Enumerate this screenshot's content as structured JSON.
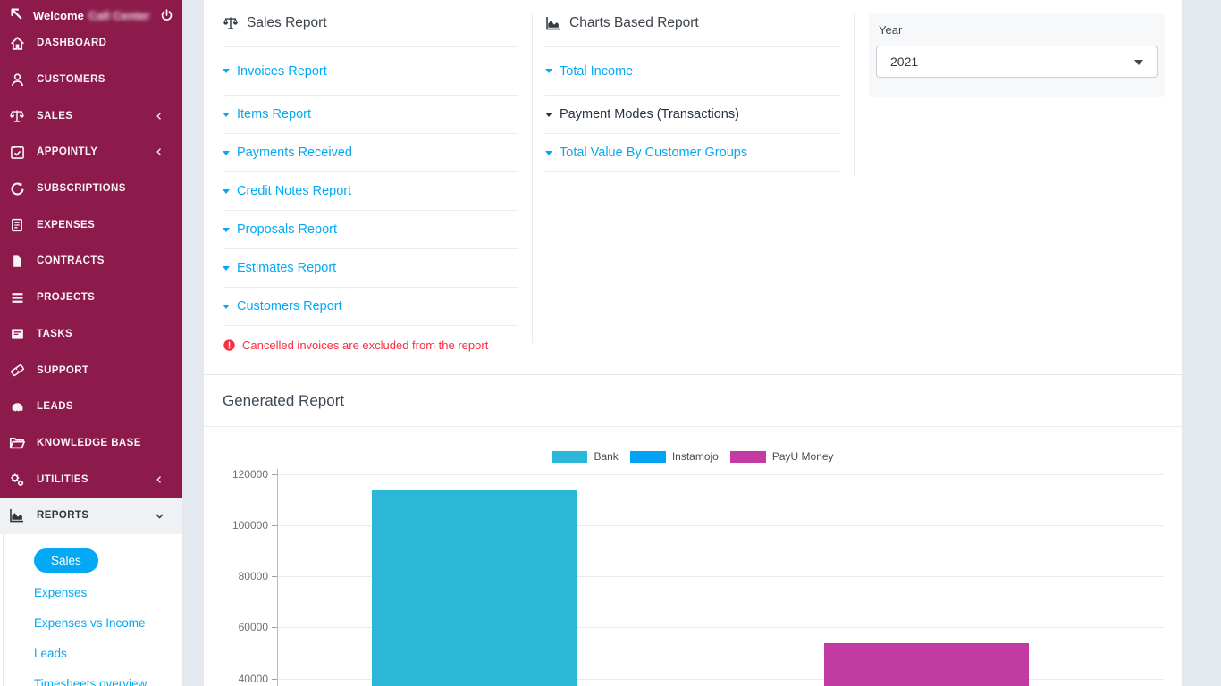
{
  "colors": {
    "sidebar_bg": "#8c1b4b",
    "accent_blue": "#03a9f4",
    "danger_red": "#fc2d42",
    "active_row_bg": "#eef2f5"
  },
  "sidebar": {
    "toggle_icon": "back-arrow-icon",
    "power_icon": "power-icon",
    "welcome_label": "Welcome",
    "welcome_user": "Call Center",
    "items": [
      {
        "label": "DASHBOARD",
        "icon": "home-icon"
      },
      {
        "label": "CUSTOMERS",
        "icon": "customers-icon"
      },
      {
        "label": "SALES",
        "icon": "sales-icon",
        "chevron": "left"
      },
      {
        "label": "APPOINTLY",
        "icon": "calendar-icon",
        "chevron": "left"
      },
      {
        "label": "SUBSCRIPTIONS",
        "icon": "subscriptions-icon"
      },
      {
        "label": "EXPENSES",
        "icon": "expenses-icon"
      },
      {
        "label": "CONTRACTS",
        "icon": "contracts-icon"
      },
      {
        "label": "PROJECTS",
        "icon": "projects-icon"
      },
      {
        "label": "TASKS",
        "icon": "tasks-icon"
      },
      {
        "label": "SUPPORT",
        "icon": "support-icon"
      },
      {
        "label": "LEADS",
        "icon": "leads-icon"
      },
      {
        "label": "KNOWLEDGE BASE",
        "icon": "knowledge-base-icon"
      },
      {
        "label": "UTILITIES",
        "icon": "utilities-icon",
        "chevron": "left"
      },
      {
        "label": "REPORTS",
        "icon": "reports-icon",
        "chevron": "down",
        "active": true
      }
    ],
    "submenu": [
      {
        "label": "Sales",
        "active": true
      },
      {
        "label": "Expenses"
      },
      {
        "label": "Expenses vs Income"
      },
      {
        "label": "Leads"
      },
      {
        "label": "Timesheets overview"
      }
    ]
  },
  "sales_report": {
    "title": "Sales Report",
    "icon": "scales-icon",
    "links": [
      "Invoices Report",
      "Items Report",
      "Payments Received",
      "Credit Notes Report",
      "Proposals Report",
      "Estimates Report",
      "Customers Report"
    ],
    "note": "Cancelled invoices are excluded from the report",
    "note_icon": "alert-icon"
  },
  "charts_report": {
    "title": "Charts Based Report",
    "icon": "area-chart-icon",
    "links": [
      {
        "label": "Total Income",
        "active": false
      },
      {
        "label": "Payment Modes (Transactions)",
        "active": true
      },
      {
        "label": "Total Value By Customer Groups",
        "active": false
      }
    ]
  },
  "filters": {
    "year_label": "Year",
    "year_value": "2021"
  },
  "generated_report": {
    "title": "Generated Report"
  },
  "chart_data": {
    "type": "bar",
    "title": "",
    "legend_position": "top",
    "grid": true,
    "series": [
      {
        "name": "Bank",
        "value": 113600,
        "color": "#2ab7d8"
      },
      {
        "name": "Instamojo",
        "value": 0,
        "color": "#03a2f4"
      },
      {
        "name": "PayU Money",
        "value": 54000,
        "color": "#c13ba3"
      }
    ],
    "yticks_visible": [
      120000,
      100000,
      80000,
      60000,
      40000
    ],
    "ylim_visible": [
      40000,
      120000
    ],
    "xlabel": "",
    "ylabel": ""
  }
}
